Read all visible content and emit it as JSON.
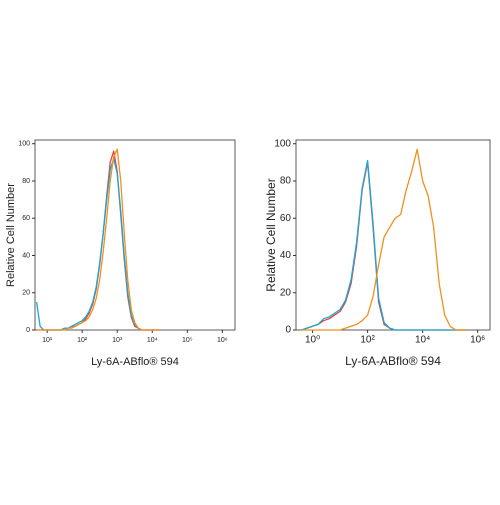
{
  "chart_data": [
    {
      "type": "line",
      "xlabel": "Ly-6A-ABflo® 594",
      "ylabel": "Relative Cell Number",
      "xscale": "log",
      "xlim": [
        4.5,
        2300000
      ],
      "ylim": [
        0,
        102
      ],
      "xticks": [
        {
          "value": 10,
          "label": "10¹"
        },
        {
          "value": 100,
          "label": "10²"
        },
        {
          "value": 1000,
          "label": "10³"
        },
        {
          "value": 10000,
          "label": "10⁴"
        },
        {
          "value": 100000,
          "label": "10⁵"
        },
        {
          "value": 1000000,
          "label": "10⁶"
        }
      ],
      "yticks": [
        0,
        20,
        40,
        60,
        80,
        100
      ],
      "x": [
        5,
        6.3,
        7.9,
        10,
        12.6,
        15.8,
        20,
        25,
        32,
        40,
        50,
        63,
        79,
        100,
        126,
        158,
        200,
        251,
        316,
        398,
        501,
        631,
        794,
        1000,
        1259,
        1585,
        1995,
        2512,
        3162,
        3981,
        5012,
        6310,
        7943,
        10000,
        12589,
        15849
      ],
      "series": [
        {
          "color": "#e8413b",
          "values": [
            0,
            0,
            0,
            0,
            0,
            0,
            0,
            0,
            1,
            1,
            2,
            2,
            3,
            4,
            6,
            9,
            14,
            22,
            35,
            52,
            72,
            90,
            96,
            85,
            62,
            38,
            18,
            7,
            2,
            1,
            0,
            0,
            0,
            0,
            0,
            0
          ]
        },
        {
          "color": "#1aa6d8",
          "values": [
            15,
            2,
            0,
            0,
            0,
            0,
            0,
            0,
            1,
            1,
            2,
            3,
            4,
            5,
            7,
            10,
            15,
            23,
            36,
            52,
            70,
            86,
            92,
            84,
            64,
            40,
            20,
            8,
            3,
            1,
            0,
            0,
            0,
            0,
            0,
            0
          ]
        },
        {
          "color": "#f0901e",
          "values": [
            0,
            0,
            0,
            0,
            0,
            0,
            0,
            0,
            0,
            1,
            1,
            2,
            3,
            4,
            5,
            7,
            11,
            17,
            27,
            42,
            60,
            80,
            93,
            97,
            80,
            52,
            27,
            11,
            4,
            1,
            0,
            0,
            0,
            0,
            0,
            0
          ]
        }
      ]
    },
    {
      "type": "line",
      "xlabel": "Ly-6A-ABflo® 594",
      "ylabel": "Relative Cell Number",
      "xscale": "log",
      "xlim": [
        0.25,
        2800000
      ],
      "ylim": [
        0,
        102
      ],
      "xticks": [
        {
          "value": 1,
          "label": "10⁰"
        },
        {
          "value": 100,
          "label": "10²"
        },
        {
          "value": 10000,
          "label": "10⁴"
        },
        {
          "value": 1000000,
          "label": "10⁶"
        }
      ],
      "yticks": [
        0,
        20,
        40,
        60,
        80,
        100
      ],
      "x": [
        0.4,
        0.63,
        1,
        1.58,
        2.51,
        3.98,
        6.31,
        10,
        15.8,
        25.1,
        39.8,
        63.1,
        100,
        158,
        251,
        398,
        631,
        1000,
        1585,
        2512,
        3981,
        6310,
        10000,
        15849,
        25119,
        39811,
        63096,
        100000,
        158489,
        251189,
        398107
      ],
      "series": [
        {
          "color": "#e8413b",
          "values": [
            0,
            1,
            2,
            3,
            5,
            6,
            8,
            10,
            15,
            25,
            45,
            75,
            90,
            55,
            15,
            3,
            1,
            0,
            0,
            0,
            0,
            0,
            0,
            0,
            0,
            0,
            0,
            0,
            0,
            0,
            0
          ]
        },
        {
          "color": "#1aa6d8",
          "values": [
            0,
            1,
            2,
            3,
            6,
            7,
            9,
            11,
            16,
            27,
            47,
            76,
            91,
            57,
            17,
            4,
            1,
            0,
            0,
            0,
            0,
            0,
            0,
            0,
            0,
            0,
            0,
            0,
            0,
            0,
            0
          ]
        },
        {
          "color": "#f0901e",
          "values": [
            0,
            0,
            0,
            0,
            0,
            0,
            0,
            0,
            1,
            2,
            3,
            5,
            8,
            18,
            35,
            50,
            55,
            60,
            62,
            75,
            85,
            97,
            80,
            72,
            55,
            25,
            8,
            2,
            0,
            0,
            0
          ]
        }
      ]
    }
  ]
}
